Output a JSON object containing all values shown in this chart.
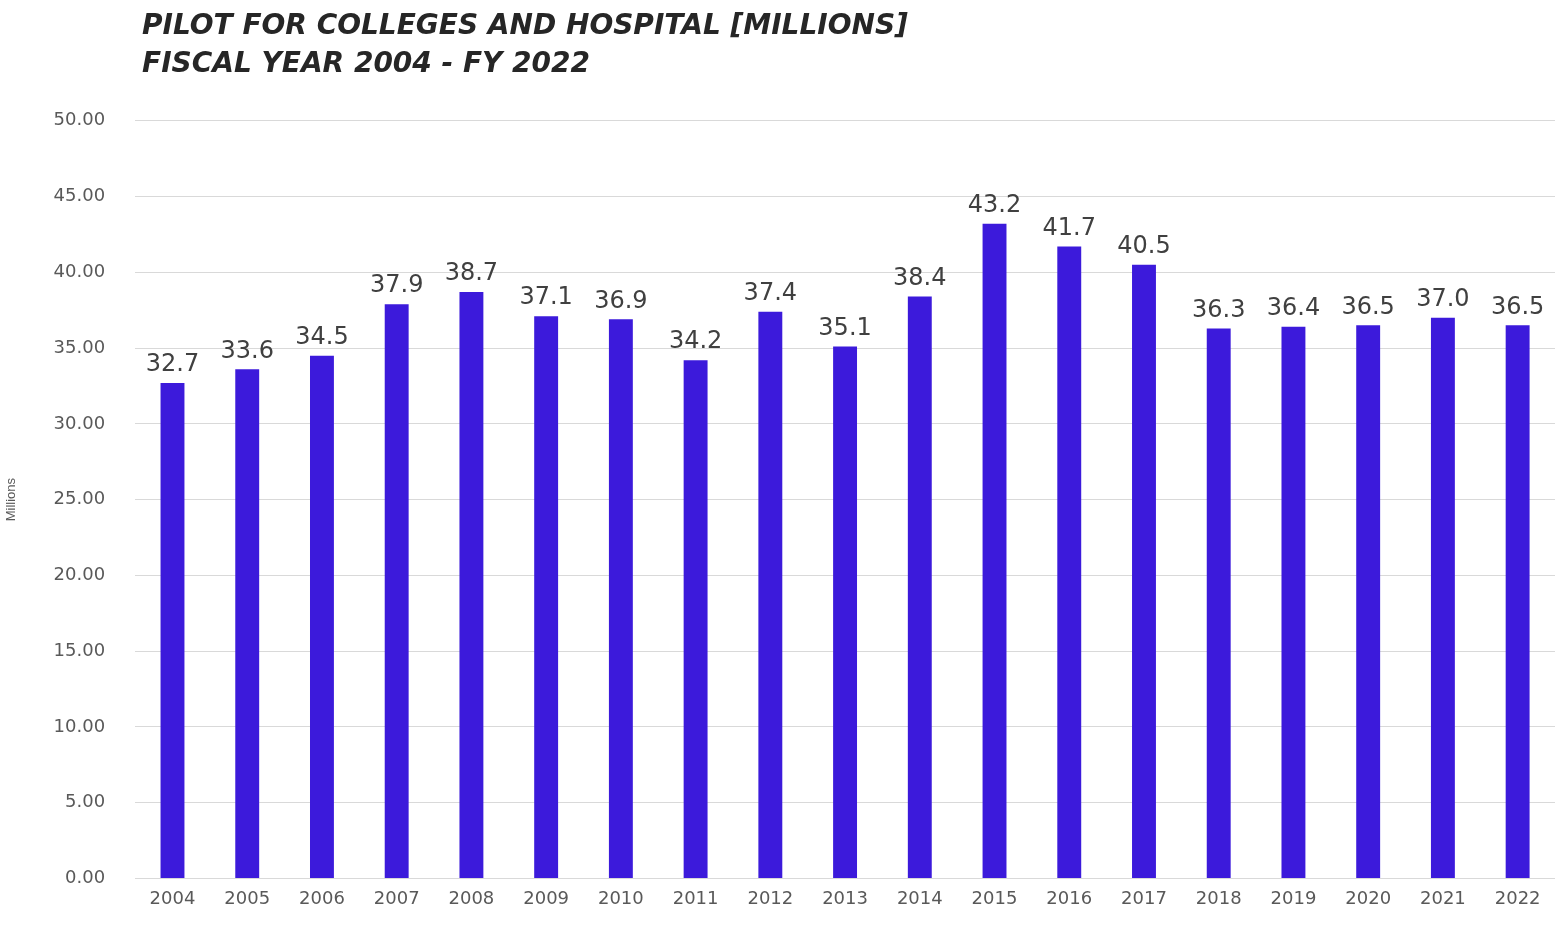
{
  "chart_data": {
    "type": "bar",
    "title": "PILOT FOR COLLEGES AND HOSPITAL [MILLIONS]",
    "subtitle": "FISCAL YEAR 2004 - FY 2022",
    "ylabel": "Millions",
    "categories": [
      "2004",
      "2005",
      "2006",
      "2007",
      "2008",
      "2009",
      "2010",
      "2011",
      "2012",
      "2013",
      "2014",
      "2015",
      "2016",
      "2017",
      "2018",
      "2019",
      "2020",
      "2021",
      "2022"
    ],
    "values": [
      32.7,
      33.6,
      34.5,
      37.9,
      38.7,
      37.1,
      36.9,
      34.2,
      37.4,
      35.1,
      38.4,
      43.2,
      41.7,
      40.5,
      36.3,
      36.4,
      36.5,
      37.0,
      36.5
    ],
    "value_labels": [
      "32.7",
      "33.6",
      "34.5",
      "37.9",
      "38.7",
      "37.1",
      "36.9",
      "34.2",
      "37.4",
      "35.1",
      "38.4",
      "43.2",
      "41.7",
      "40.5",
      "36.3",
      "36.4",
      "36.5",
      "37.0",
      "36.5"
    ],
    "color": "#3c1adb",
    "ylim": [
      0,
      50
    ],
    "yticks": [
      {
        "value": 0,
        "label": "0.00"
      },
      {
        "value": 5,
        "label": "5.00"
      },
      {
        "value": 10,
        "label": "10.00"
      },
      {
        "value": 15,
        "label": "15.00"
      },
      {
        "value": 20,
        "label": "20.00"
      },
      {
        "value": 25,
        "label": "25.00"
      },
      {
        "value": 30,
        "label": "30.00"
      },
      {
        "value": 35,
        "label": "35.00"
      },
      {
        "value": 40,
        "label": "40.00"
      },
      {
        "value": 45,
        "label": "45.00"
      },
      {
        "value": 50,
        "label": "50.00"
      }
    ],
    "grid": "y",
    "legend": false
  }
}
